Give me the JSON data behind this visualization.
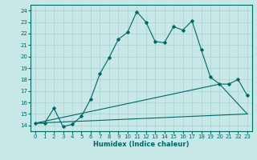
{
  "xlabel": "Humidex (Indice chaleur)",
  "bg_color": "#c8e8e8",
  "line_color": "#006666",
  "grid_color": "#a8d0d0",
  "xlim": [
    -0.5,
    23.5
  ],
  "ylim": [
    13.5,
    24.5
  ],
  "xticks": [
    0,
    1,
    2,
    3,
    4,
    5,
    6,
    7,
    8,
    9,
    10,
    11,
    12,
    13,
    14,
    15,
    16,
    17,
    18,
    19,
    20,
    21,
    22,
    23
  ],
  "yticks": [
    14,
    15,
    16,
    17,
    18,
    19,
    20,
    21,
    22,
    23,
    24
  ],
  "line1_x": [
    0,
    1,
    2,
    3,
    4,
    5,
    6,
    7,
    8,
    9,
    10,
    11,
    12,
    13,
    14,
    15,
    16,
    17,
    18,
    19,
    20,
    21,
    22,
    23
  ],
  "line1_y": [
    14.2,
    14.2,
    15.5,
    13.9,
    14.1,
    14.8,
    16.3,
    18.5,
    19.9,
    21.5,
    22.1,
    23.9,
    23.0,
    21.3,
    21.2,
    22.6,
    22.3,
    23.1,
    20.6,
    18.2,
    17.6,
    17.6,
    18.0,
    16.6
  ],
  "line2_x": [
    0,
    23
  ],
  "line2_y": [
    14.2,
    15.0
  ],
  "line3_x": [
    0,
    20,
    23
  ],
  "line3_y": [
    14.2,
    17.6,
    15.0
  ]
}
